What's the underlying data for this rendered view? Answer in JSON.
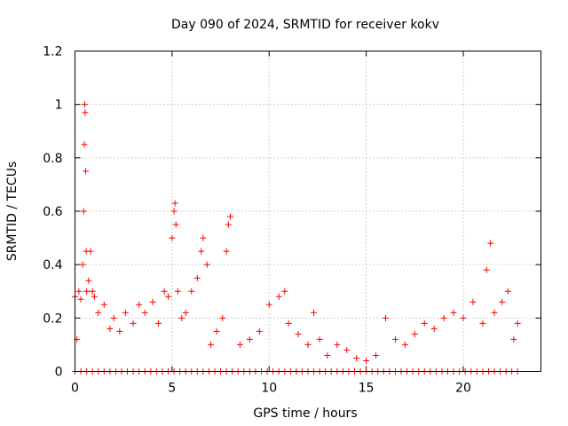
{
  "chart_data": {
    "type": "scatter",
    "title": "Day 090 of 2024, SRMTID for receiver kokv",
    "xlabel": "GPS time / hours",
    "ylabel": "SRMTID / TECUs",
    "xlim": [
      0,
      24
    ],
    "ylim": [
      0,
      1.2
    ],
    "xticks": [
      0,
      5,
      10,
      15,
      20
    ],
    "xtick_labels": [
      "0",
      "5",
      "10",
      "15",
      "20"
    ],
    "yticks": [
      0,
      0.2,
      0.4,
      0.6,
      0.8,
      1.0,
      1.2
    ],
    "ytick_labels": [
      "0",
      "0.2",
      "0.4",
      "0.6",
      "0.8",
      "1",
      "1.2"
    ],
    "grid": true,
    "marker": "+",
    "color": "#ff0000",
    "series": [
      {
        "name": "SRMTID",
        "x": [
          0.0,
          0.1,
          0.2,
          0.3,
          0.4,
          0.45,
          0.48,
          0.5,
          0.52,
          0.55,
          0.58,
          0.6,
          0.7,
          0.8,
          0.9,
          1.0,
          1.2,
          1.5,
          1.8,
          2.0,
          2.3,
          2.6,
          3.0,
          3.3,
          3.6,
          4.0,
          4.3,
          4.6,
          4.8,
          5.0,
          5.1,
          5.15,
          5.2,
          5.3,
          5.5,
          5.7,
          6.0,
          6.3,
          6.5,
          6.6,
          6.8,
          7.0,
          7.3,
          7.6,
          7.8,
          7.9,
          8.0,
          8.5,
          9.0,
          9.5,
          10.0,
          10.5,
          10.8,
          11.0,
          11.5,
          12.0,
          12.3,
          12.6,
          13.0,
          13.5,
          14.0,
          14.5,
          15.0,
          15.5,
          16.0,
          16.5,
          17.0,
          17.5,
          18.0,
          18.5,
          19.0,
          19.5,
          20.0,
          20.5,
          21.0,
          21.2,
          21.4,
          21.6,
          22.0,
          22.3,
          22.6,
          22.8
        ],
        "y": [
          0.28,
          0.12,
          0.3,
          0.27,
          0.4,
          0.6,
          0.85,
          1.0,
          0.97,
          0.75,
          0.45,
          0.3,
          0.34,
          0.45,
          0.3,
          0.28,
          0.22,
          0.25,
          0.16,
          0.2,
          0.15,
          0.22,
          0.18,
          0.25,
          0.22,
          0.26,
          0.18,
          0.3,
          0.28,
          0.5,
          0.6,
          0.63,
          0.55,
          0.3,
          0.2,
          0.22,
          0.3,
          0.35,
          0.45,
          0.5,
          0.4,
          0.1,
          0.15,
          0.2,
          0.45,
          0.55,
          0.58,
          0.1,
          0.12,
          0.15,
          0.25,
          0.28,
          0.3,
          0.18,
          0.14,
          0.1,
          0.22,
          0.12,
          0.06,
          0.1,
          0.08,
          0.05,
          0.04,
          0.06,
          0.2,
          0.12,
          0.1,
          0.14,
          0.18,
          0.16,
          0.2,
          0.22,
          0.2,
          0.26,
          0.18,
          0.38,
          0.48,
          0.22,
          0.26,
          0.3,
          0.12,
          0.18
        ]
      },
      {
        "name": "zero baseline",
        "x": [
          0.0,
          0.3,
          0.6,
          0.9,
          1.2,
          1.5,
          1.8,
          2.1,
          2.4,
          2.7,
          3.0,
          3.3,
          3.6,
          3.9,
          4.2,
          4.5,
          4.8,
          5.1,
          5.4,
          5.7,
          6.0,
          6.3,
          6.6,
          6.9,
          7.2,
          7.5,
          7.8,
          8.1,
          8.4,
          8.7,
          9.0,
          9.3,
          9.6,
          9.9,
          10.2,
          10.5,
          10.8,
          11.1,
          11.4,
          11.7,
          12.0,
          12.3,
          12.6,
          12.9,
          13.2,
          13.5,
          13.8,
          14.1,
          14.4,
          14.7,
          15.0,
          15.3,
          15.6,
          15.9,
          16.2,
          16.5,
          16.8,
          17.1,
          17.4,
          17.7,
          18.0,
          18.3,
          18.6,
          18.9,
          19.2,
          19.5,
          19.8,
          20.1,
          20.4,
          20.7,
          21.0,
          21.3,
          21.6,
          21.9,
          22.2,
          22.5,
          22.8
        ],
        "y": [
          0,
          0,
          0,
          0,
          0,
          0,
          0,
          0,
          0,
          0,
          0,
          0,
          0,
          0,
          0,
          0,
          0,
          0,
          0,
          0,
          0,
          0,
          0,
          0,
          0,
          0,
          0,
          0,
          0,
          0,
          0,
          0,
          0,
          0,
          0,
          0,
          0,
          0,
          0,
          0,
          0,
          0,
          0,
          0,
          0,
          0,
          0,
          0,
          0,
          0,
          0,
          0,
          0,
          0,
          0,
          0,
          0,
          0,
          0,
          0,
          0,
          0,
          0,
          0,
          0,
          0,
          0,
          0,
          0,
          0,
          0,
          0,
          0,
          0,
          0,
          0,
          0
        ]
      }
    ]
  }
}
